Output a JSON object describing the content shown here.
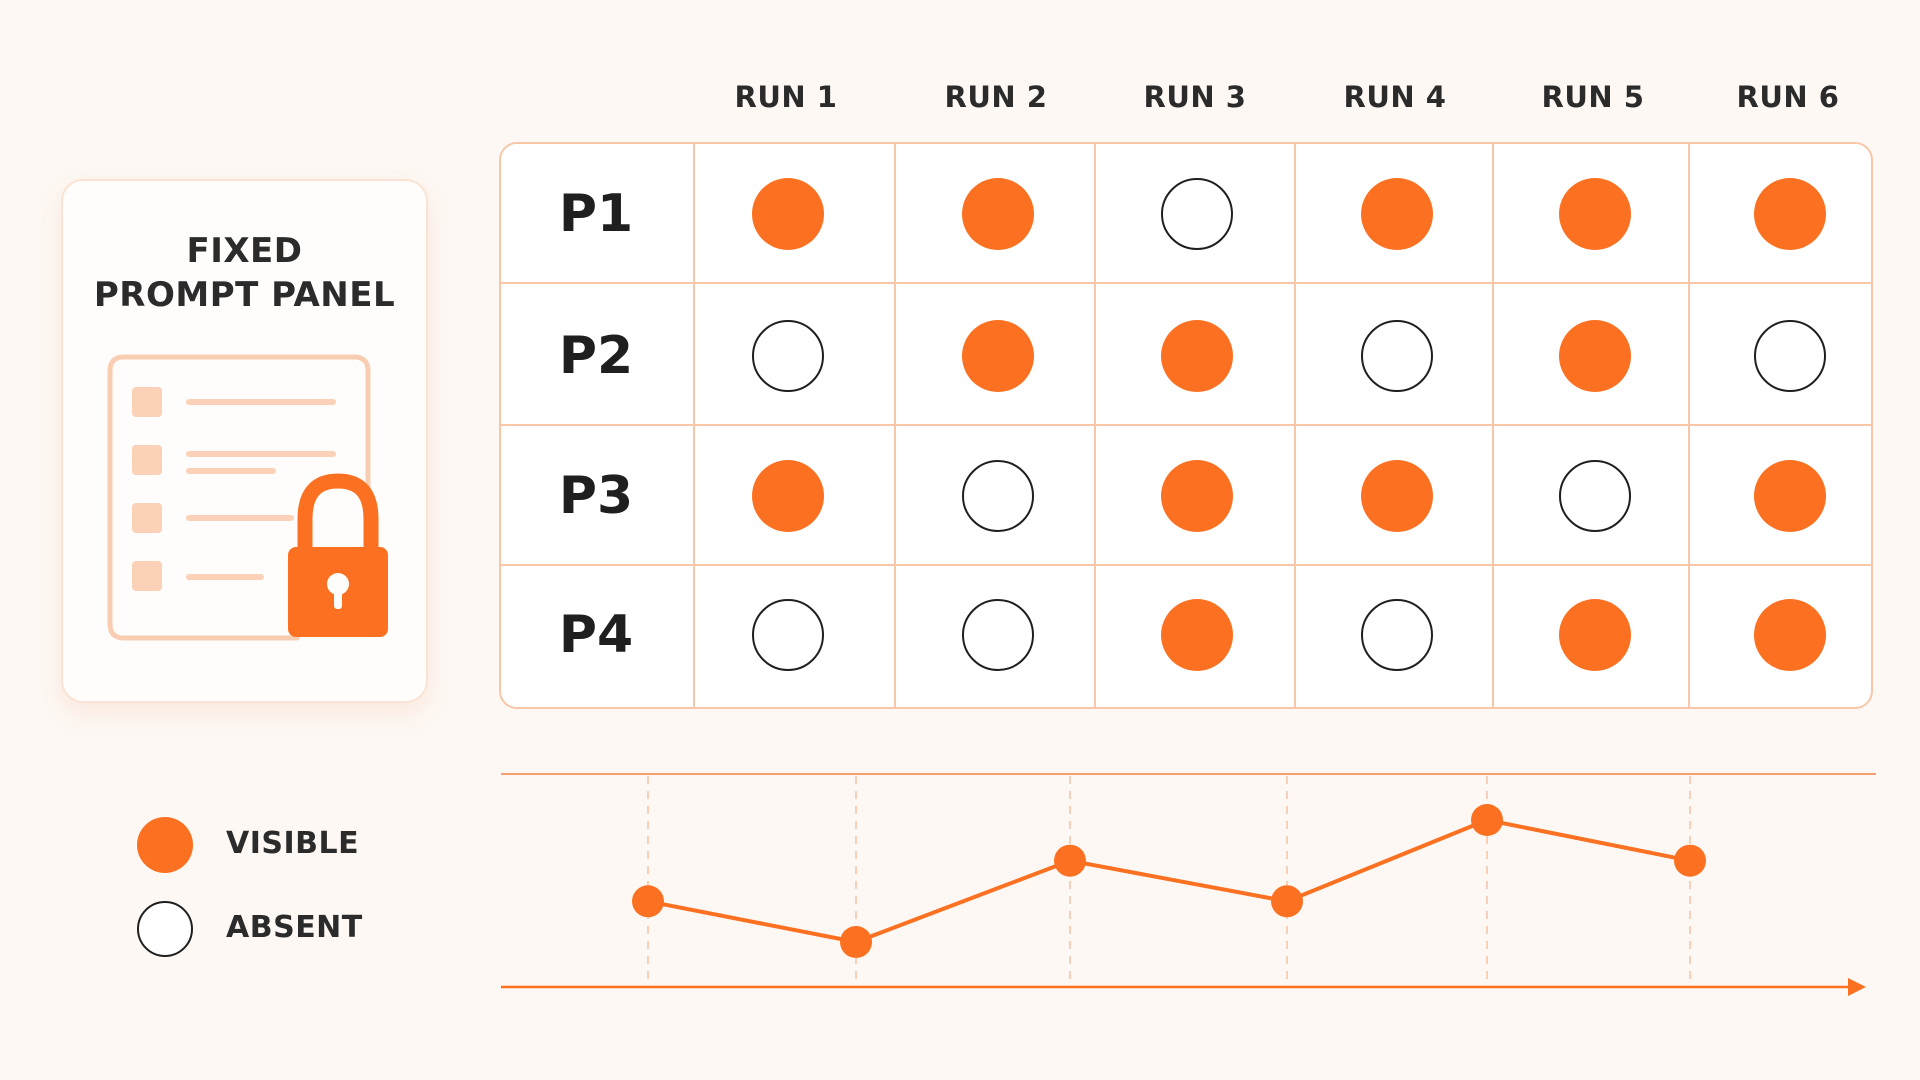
{
  "panel": {
    "title_line1": "FIXED",
    "title_line2": "PROMPT PANEL",
    "illustration_icon": "locked-document-icon"
  },
  "runs": [
    "RUN 1",
    "RUN 2",
    "RUN 3",
    "RUN 4",
    "RUN 5",
    "RUN 6"
  ],
  "rows": [
    {
      "label": "P1",
      "cells": [
        true,
        true,
        false,
        true,
        true,
        true
      ]
    },
    {
      "label": "P2",
      "cells": [
        false,
        true,
        true,
        false,
        true,
        false
      ]
    },
    {
      "label": "P3",
      "cells": [
        true,
        false,
        true,
        true,
        false,
        true
      ]
    },
    {
      "label": "P4",
      "cells": [
        false,
        false,
        true,
        false,
        true,
        true
      ]
    }
  ],
  "legend": {
    "visible_label": "VISIBLE",
    "absent_label": "ABSENT"
  },
  "trend": {
    "values": [
      2,
      1,
      3,
      2,
      4,
      3
    ]
  },
  "colors": {
    "accent": "#fb7121",
    "accent_light": "#f7c7a8",
    "background": "#fdf8f4",
    "ink": "#1f1f1f"
  }
}
